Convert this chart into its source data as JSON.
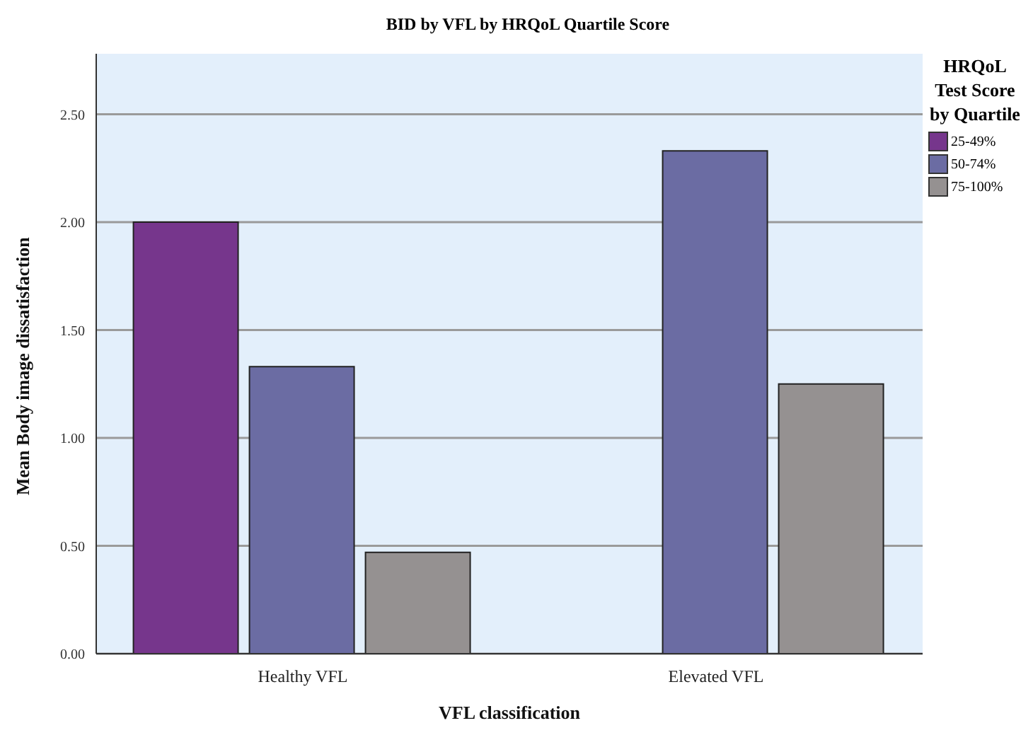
{
  "chart_data": {
    "type": "bar",
    "title": "BID by VFL by HRQoL Quartile Score",
    "xlabel": "VFL classification",
    "ylabel": "Mean Body image dissatisfaction",
    "legend_title": "HRQoL Test Score by Quartile",
    "categories": [
      "Healthy VFL",
      "Elevated VFL"
    ],
    "series": [
      {
        "name": "25-49%",
        "color": "#76368c",
        "values": [
          2.0,
          null
        ]
      },
      {
        "name": "50-74%",
        "color": "#6b6ca3",
        "values": [
          1.33,
          2.33
        ]
      },
      {
        "name": "75-100%",
        "color": "#959191",
        "values": [
          0.47,
          1.25
        ]
      }
    ],
    "ylim": [
      0,
      2.78
    ],
    "yticks": [
      {
        "value": 0,
        "label": "0.00"
      },
      {
        "value": 0.5,
        "label": "0.50"
      },
      {
        "value": 1,
        "label": "1.00"
      },
      {
        "value": 1.5,
        "label": "1.50"
      },
      {
        "value": 2,
        "label": "2.00"
      },
      {
        "value": 2.5,
        "label": "2.50"
      }
    ],
    "grid": "y",
    "legend": "right"
  }
}
